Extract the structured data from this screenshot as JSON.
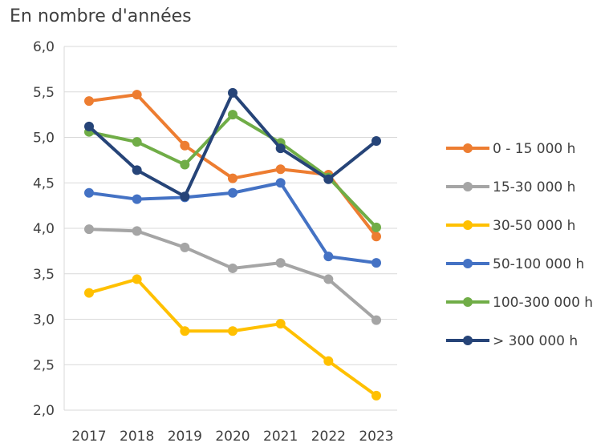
{
  "chart_data": {
    "type": "line",
    "subtitle": "En nombre d'années",
    "x": [
      "2017",
      "2018",
      "2019",
      "2020",
      "2021",
      "2022",
      "2023"
    ],
    "ylim": [
      2.0,
      6.0
    ],
    "yticks": [
      "2,0",
      "2,5",
      "3,0",
      "3,5",
      "4,0",
      "4,5",
      "5,0",
      "5,5",
      "6,0"
    ],
    "ytick_values": [
      2.0,
      2.5,
      3.0,
      3.5,
      4.0,
      4.5,
      5.0,
      5.5,
      6.0
    ],
    "grid": true,
    "legend_position": "right",
    "series": [
      {
        "name": "0 - 15 000 h",
        "color": "#ED7D31",
        "values": [
          5.4,
          5.47,
          4.91,
          4.55,
          4.65,
          4.59,
          3.91
        ]
      },
      {
        "name": "15-30 000 h",
        "color": "#A5A5A5",
        "values": [
          3.99,
          3.97,
          3.79,
          3.56,
          3.62,
          3.44,
          2.99
        ]
      },
      {
        "name": "30-50 000 h",
        "color": "#FFC000",
        "values": [
          3.29,
          3.44,
          2.87,
          2.87,
          2.95,
          2.54,
          2.16
        ]
      },
      {
        "name": "50-100 000 h",
        "color": "#4472C4",
        "values": [
          4.39,
          4.32,
          4.34,
          4.39,
          4.5,
          3.69,
          3.62
        ]
      },
      {
        "name": "100-300 000 h",
        "color": "#70AD47",
        "values": [
          5.06,
          4.95,
          4.7,
          5.25,
          4.94,
          4.56,
          4.01
        ]
      },
      {
        "name": "> 300 000 h",
        "color": "#264478",
        "values": [
          5.12,
          4.64,
          4.35,
          5.49,
          4.88,
          4.54,
          4.96
        ]
      }
    ]
  }
}
